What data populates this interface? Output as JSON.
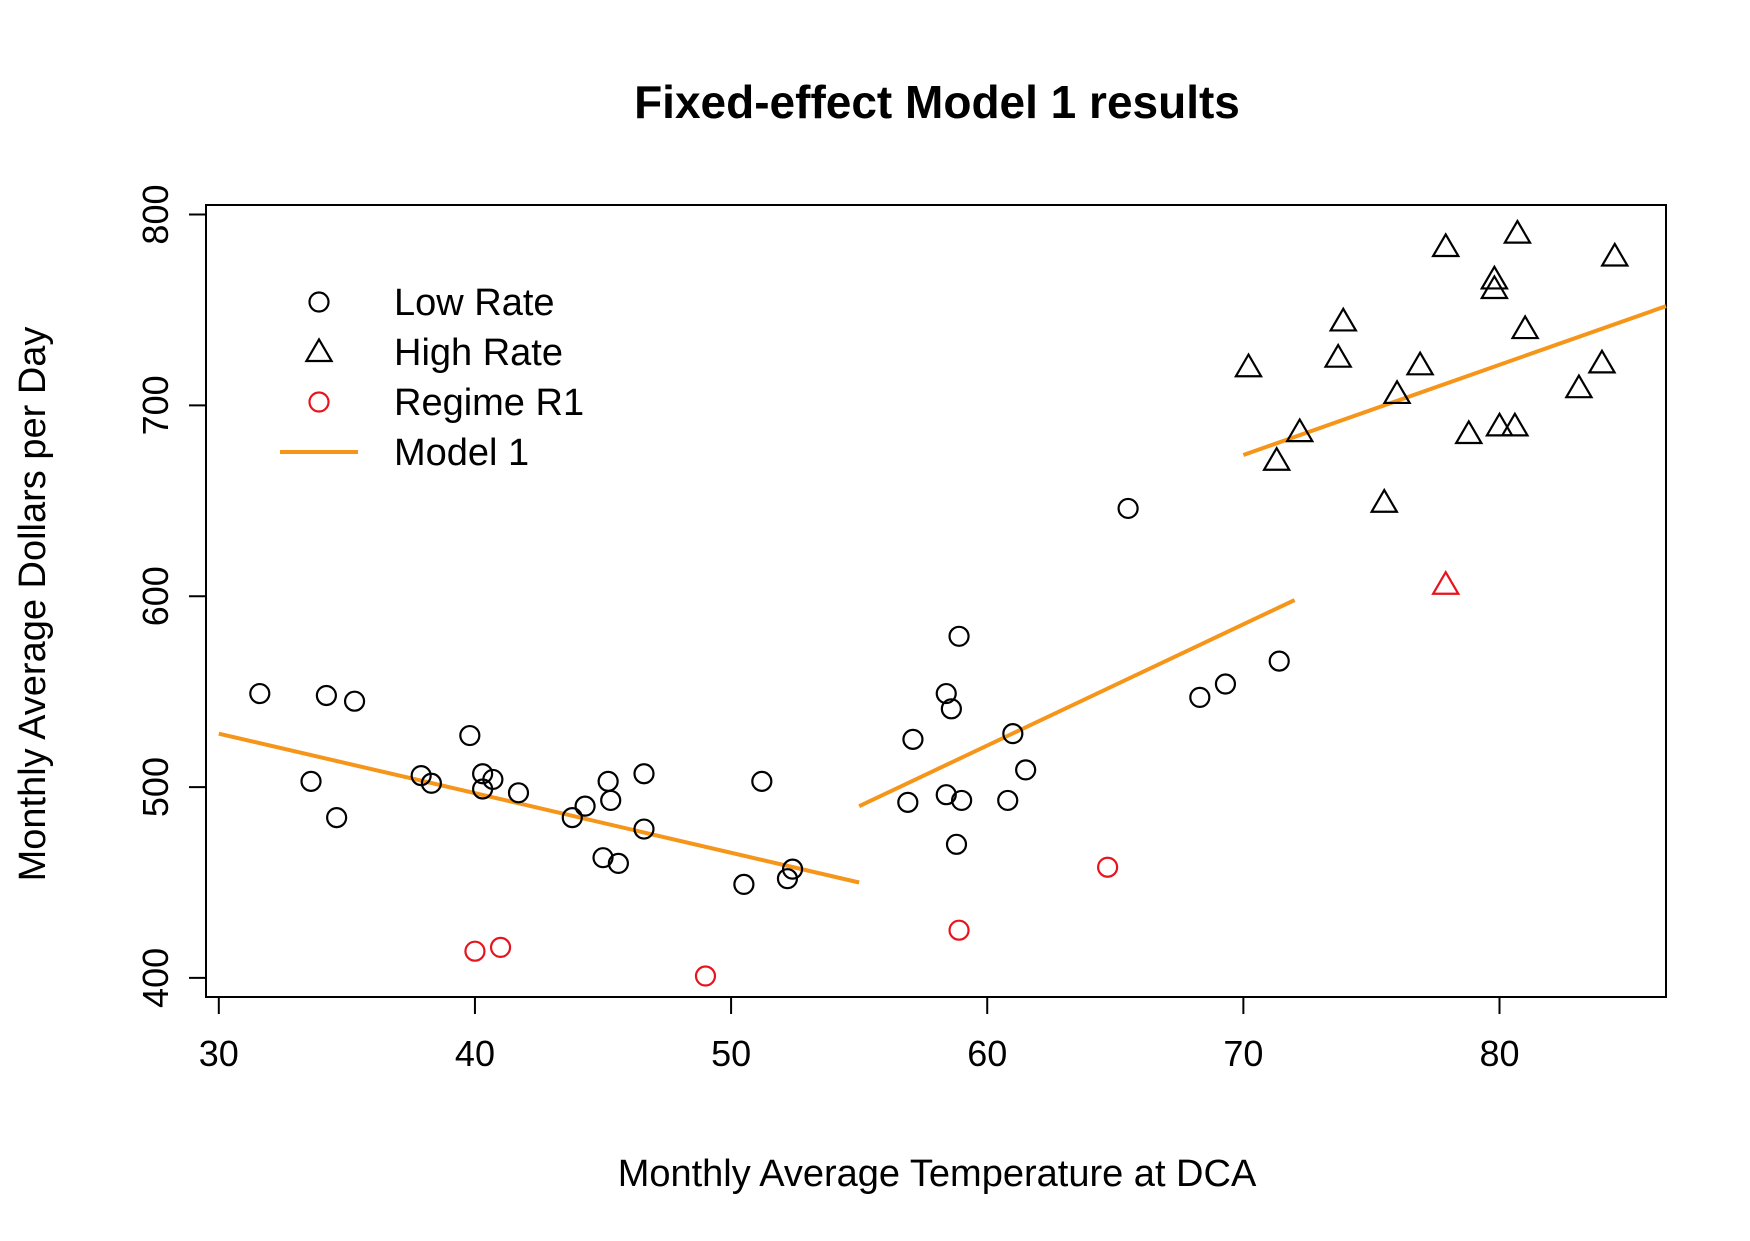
{
  "chart_data": {
    "type": "scatter",
    "title": "Fixed-effect Model 1 results",
    "xlabel": "Monthly Average Temperature at DCA",
    "ylabel": "Monthly Average Dollars per Day",
    "xlim": [
      29.5,
      86.5
    ],
    "ylim": [
      390,
      805
    ],
    "xticks": [
      30,
      40,
      50,
      60,
      70,
      80
    ],
    "yticks": [
      400,
      500,
      600,
      700,
      800
    ],
    "grid": false,
    "legend_position": "top-left",
    "colors": {
      "points": "#000000",
      "regime": "#e8141c",
      "model": "#f5951a"
    },
    "legend": [
      {
        "label": "Low Rate",
        "symbol": "circle",
        "color": "#000000"
      },
      {
        "label": "High Rate",
        "symbol": "triangle",
        "color": "#000000"
      },
      {
        "label": "Regime R1",
        "symbol": "circle",
        "color": "#e8141c"
      },
      {
        "label": "Model 1",
        "symbol": "line",
        "color": "#f5951a"
      }
    ],
    "series": [
      {
        "name": "Low Rate",
        "symbol": "circle",
        "color": "#000000",
        "points": [
          [
            31.6,
            549
          ],
          [
            33.6,
            503
          ],
          [
            34.2,
            548
          ],
          [
            34.6,
            484
          ],
          [
            35.3,
            545
          ],
          [
            37.9,
            506
          ],
          [
            38.3,
            502
          ],
          [
            39.8,
            527
          ],
          [
            40.3,
            507
          ],
          [
            40.3,
            499
          ],
          [
            40.7,
            504
          ],
          [
            41.7,
            497
          ],
          [
            43.8,
            484
          ],
          [
            44.3,
            490
          ],
          [
            45.0,
            463
          ],
          [
            45.2,
            503
          ],
          [
            45.3,
            493
          ],
          [
            45.6,
            460
          ],
          [
            46.6,
            507
          ],
          [
            46.6,
            478
          ],
          [
            50.5,
            449
          ],
          [
            51.2,
            503
          ],
          [
            52.2,
            452
          ],
          [
            52.4,
            457
          ],
          [
            56.9,
            492
          ],
          [
            57.1,
            525
          ],
          [
            58.4,
            496
          ],
          [
            58.4,
            549
          ],
          [
            58.6,
            541
          ],
          [
            58.9,
            579
          ],
          [
            58.8,
            470
          ],
          [
            59.0,
            493
          ],
          [
            60.8,
            493
          ],
          [
            61.0,
            528
          ],
          [
            61.5,
            509
          ],
          [
            65.5,
            646
          ],
          [
            68.3,
            547
          ],
          [
            69.3,
            554
          ],
          [
            71.4,
            566
          ]
        ]
      },
      {
        "name": "High Rate",
        "symbol": "triangle",
        "color": "#000000",
        "points": [
          [
            70.2,
            720
          ],
          [
            71.3,
            671
          ],
          [
            72.2,
            686
          ],
          [
            73.7,
            725
          ],
          [
            73.9,
            744
          ],
          [
            75.5,
            649
          ],
          [
            76.0,
            706
          ],
          [
            76.9,
            721
          ],
          [
            77.9,
            783
          ],
          [
            78.8,
            685
          ],
          [
            79.8,
            766
          ],
          [
            79.8,
            761
          ],
          [
            80.0,
            689
          ],
          [
            80.6,
            689
          ],
          [
            80.7,
            790
          ],
          [
            81.0,
            740
          ],
          [
            83.1,
            709
          ],
          [
            84.0,
            722
          ],
          [
            84.5,
            778
          ]
        ]
      },
      {
        "name": "Regime R1",
        "symbol": "circle",
        "color": "#e8141c",
        "points": [
          [
            40.0,
            414
          ],
          [
            41.0,
            416
          ],
          [
            49.0,
            401
          ],
          [
            58.9,
            425
          ],
          [
            64.7,
            458
          ]
        ]
      },
      {
        "name": "Regime R1",
        "symbol": "triangle",
        "color": "#e8141c",
        "points": [
          [
            77.9,
            606
          ]
        ]
      }
    ],
    "lines": [
      {
        "name": "Model 1",
        "color": "#f5951a",
        "x": [
          30,
          55
        ],
        "y": [
          528,
          450
        ]
      },
      {
        "name": "Model 1",
        "color": "#f5951a",
        "x": [
          55,
          72
        ],
        "y": [
          490,
          598
        ]
      },
      {
        "name": "Model 1",
        "color": "#f5951a",
        "x": [
          70,
          86.5
        ],
        "y": [
          674,
          752
        ]
      }
    ]
  }
}
